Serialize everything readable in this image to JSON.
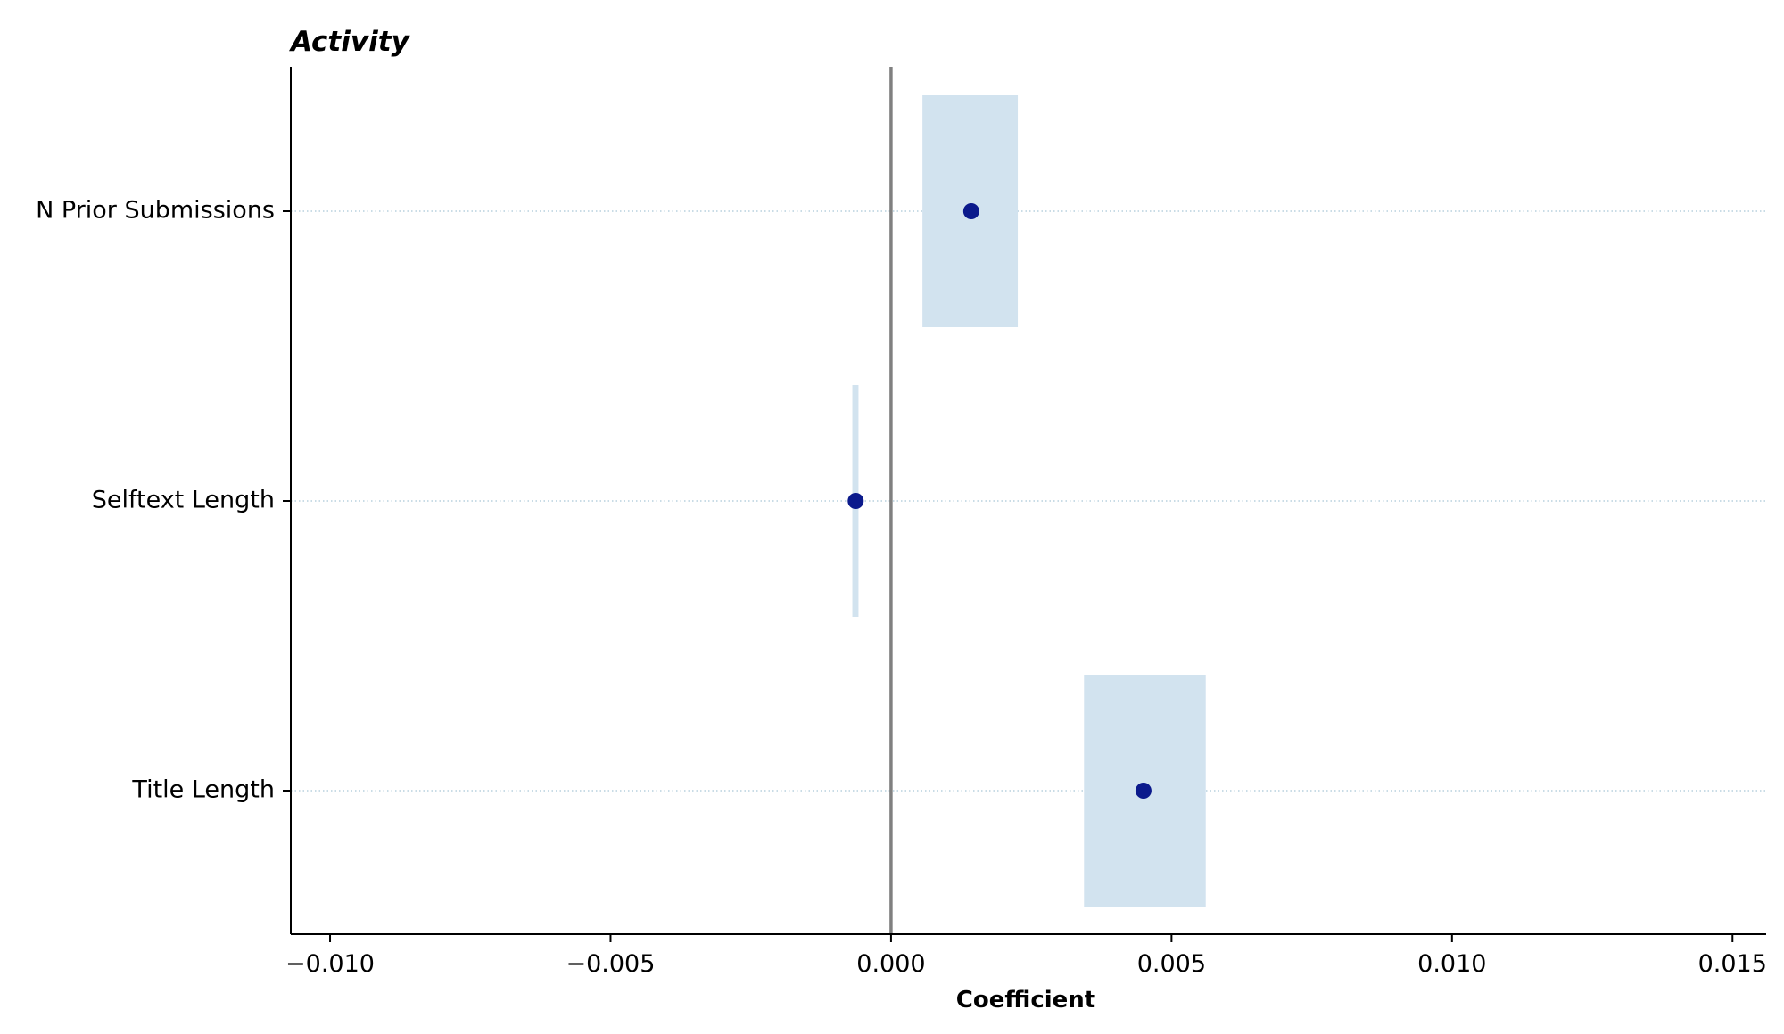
{
  "chart_data": {
    "type": "scatter",
    "title": "Activity",
    "xlabel": "Coefficient",
    "ylabel": "",
    "xlim": [
      -0.0107,
      0.0156
    ],
    "xticks": [
      -0.01,
      -0.005,
      0.0,
      0.005,
      0.01,
      0.015
    ],
    "xtick_labels": [
      "−0.010",
      "−0.005",
      "0.000",
      "0.005",
      "0.010",
      "0.015"
    ],
    "categories": [
      "N Prior Submissions",
      "Selftext Length",
      "Title Length"
    ],
    "series": [
      {
        "name": "Coefficient",
        "values": [
          0.00143,
          -0.00063,
          0.0045
        ],
        "ci_low": [
          0.00056,
          -0.00069,
          0.00344
        ],
        "ci_high": [
          0.00226,
          -0.00058,
          0.00561
        ]
      }
    ],
    "reference_line": 0,
    "grid": "horizontal dotted at category positions",
    "colors": {
      "point": "#0b1a8c",
      "interval": "#d2e3ef",
      "reference": "#808080",
      "grid": "#a9c6d6",
      "axis": "#000000"
    }
  }
}
